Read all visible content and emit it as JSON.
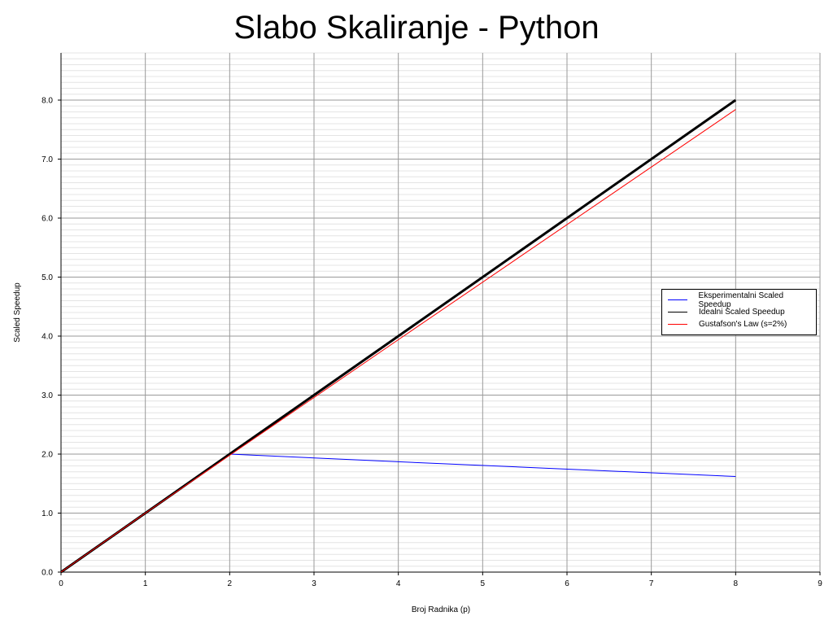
{
  "chart_data": {
    "type": "line",
    "title": "Slabo Skaliranje - Python",
    "xlabel": "Broj Radnika (p)",
    "ylabel": "Scaled Speedup",
    "xlim": [
      0,
      9
    ],
    "ylim": [
      0,
      8.8
    ],
    "x_ticks": [
      "0",
      "1",
      "2",
      "3",
      "4",
      "5",
      "6",
      "7",
      "8",
      "9"
    ],
    "y_ticks": [
      "0.0",
      "1.0",
      "2.0",
      "3.0",
      "4.0",
      "5.0",
      "6.0",
      "7.0",
      "8.0"
    ],
    "grid": true,
    "legend_position": "right",
    "series": [
      {
        "name": "Eksperimentalni Scaled Speedup",
        "color": "#0000ff",
        "width": 1,
        "x": [
          0,
          1,
          2,
          4,
          8
        ],
        "y": [
          0,
          1.0,
          2.0,
          1.87,
          1.62
        ]
      },
      {
        "name": "Idealni Scaled Speedup",
        "color": "#000000",
        "width": 3,
        "x": [
          0,
          1,
          2,
          4,
          8
        ],
        "y": [
          0,
          1,
          2,
          4,
          8
        ]
      },
      {
        "name": "Gustafson's Law (s=2%)",
        "color": "#ff0000",
        "width": 1,
        "x": [
          0,
          1,
          2,
          4,
          8
        ],
        "y": [
          0,
          1.0,
          1.98,
          3.94,
          7.84
        ]
      }
    ]
  }
}
